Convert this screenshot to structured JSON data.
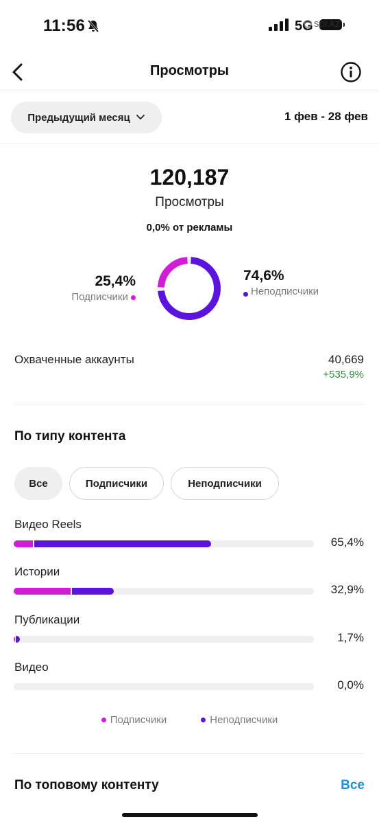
{
  "status_bar": {
    "time": "11:56",
    "network": "5G",
    "watermark": "spi.kz"
  },
  "header": {
    "title": "Просмотры"
  },
  "period": {
    "selector_label": "Предыдущий месяц",
    "range": "1 фев - 28 фев"
  },
  "summary": {
    "total_views": "120,187",
    "total_label": "Просмотры",
    "ads_share": "0,0% от рекламы",
    "followers": {
      "percent": "25,4%",
      "label": "Подписчики",
      "fraction": 0.254,
      "color": "#d21dd7"
    },
    "non_followers": {
      "percent": "74,6%",
      "label": "Неподписчики",
      "fraction": 0.746,
      "color": "#5a14de"
    }
  },
  "reach": {
    "label": "Охваченные аккаунты",
    "value": "40,669",
    "change": "+535,9%"
  },
  "content_type": {
    "title": "По типу контента",
    "filters": [
      "Все",
      "Подписчики",
      "Неподписчики"
    ],
    "active_filter": "Все",
    "rows": [
      {
        "label": "Видео Reels",
        "percent": "65,4%",
        "followers_share": 6.5,
        "non_followers_share": 58.9
      },
      {
        "label": "Истории",
        "percent": "32,9%",
        "followers_share": 19.0,
        "non_followers_share": 13.9
      },
      {
        "label": "Публикации",
        "percent": "1,7%",
        "followers_share": 0.3,
        "non_followers_share": 1.4
      },
      {
        "label": "Видео",
        "percent": "0,0%",
        "followers_share": 0,
        "non_followers_share": 0
      }
    ],
    "legend": [
      "Подписчики",
      "Неподписчики"
    ]
  },
  "top_content": {
    "title": "По топовому контенту",
    "see_all": "Все"
  },
  "colors": {
    "followers": "#d21dd7",
    "non_followers": "#5a14de",
    "positive": "#2e8b3e",
    "link": "#1e90d8"
  }
}
